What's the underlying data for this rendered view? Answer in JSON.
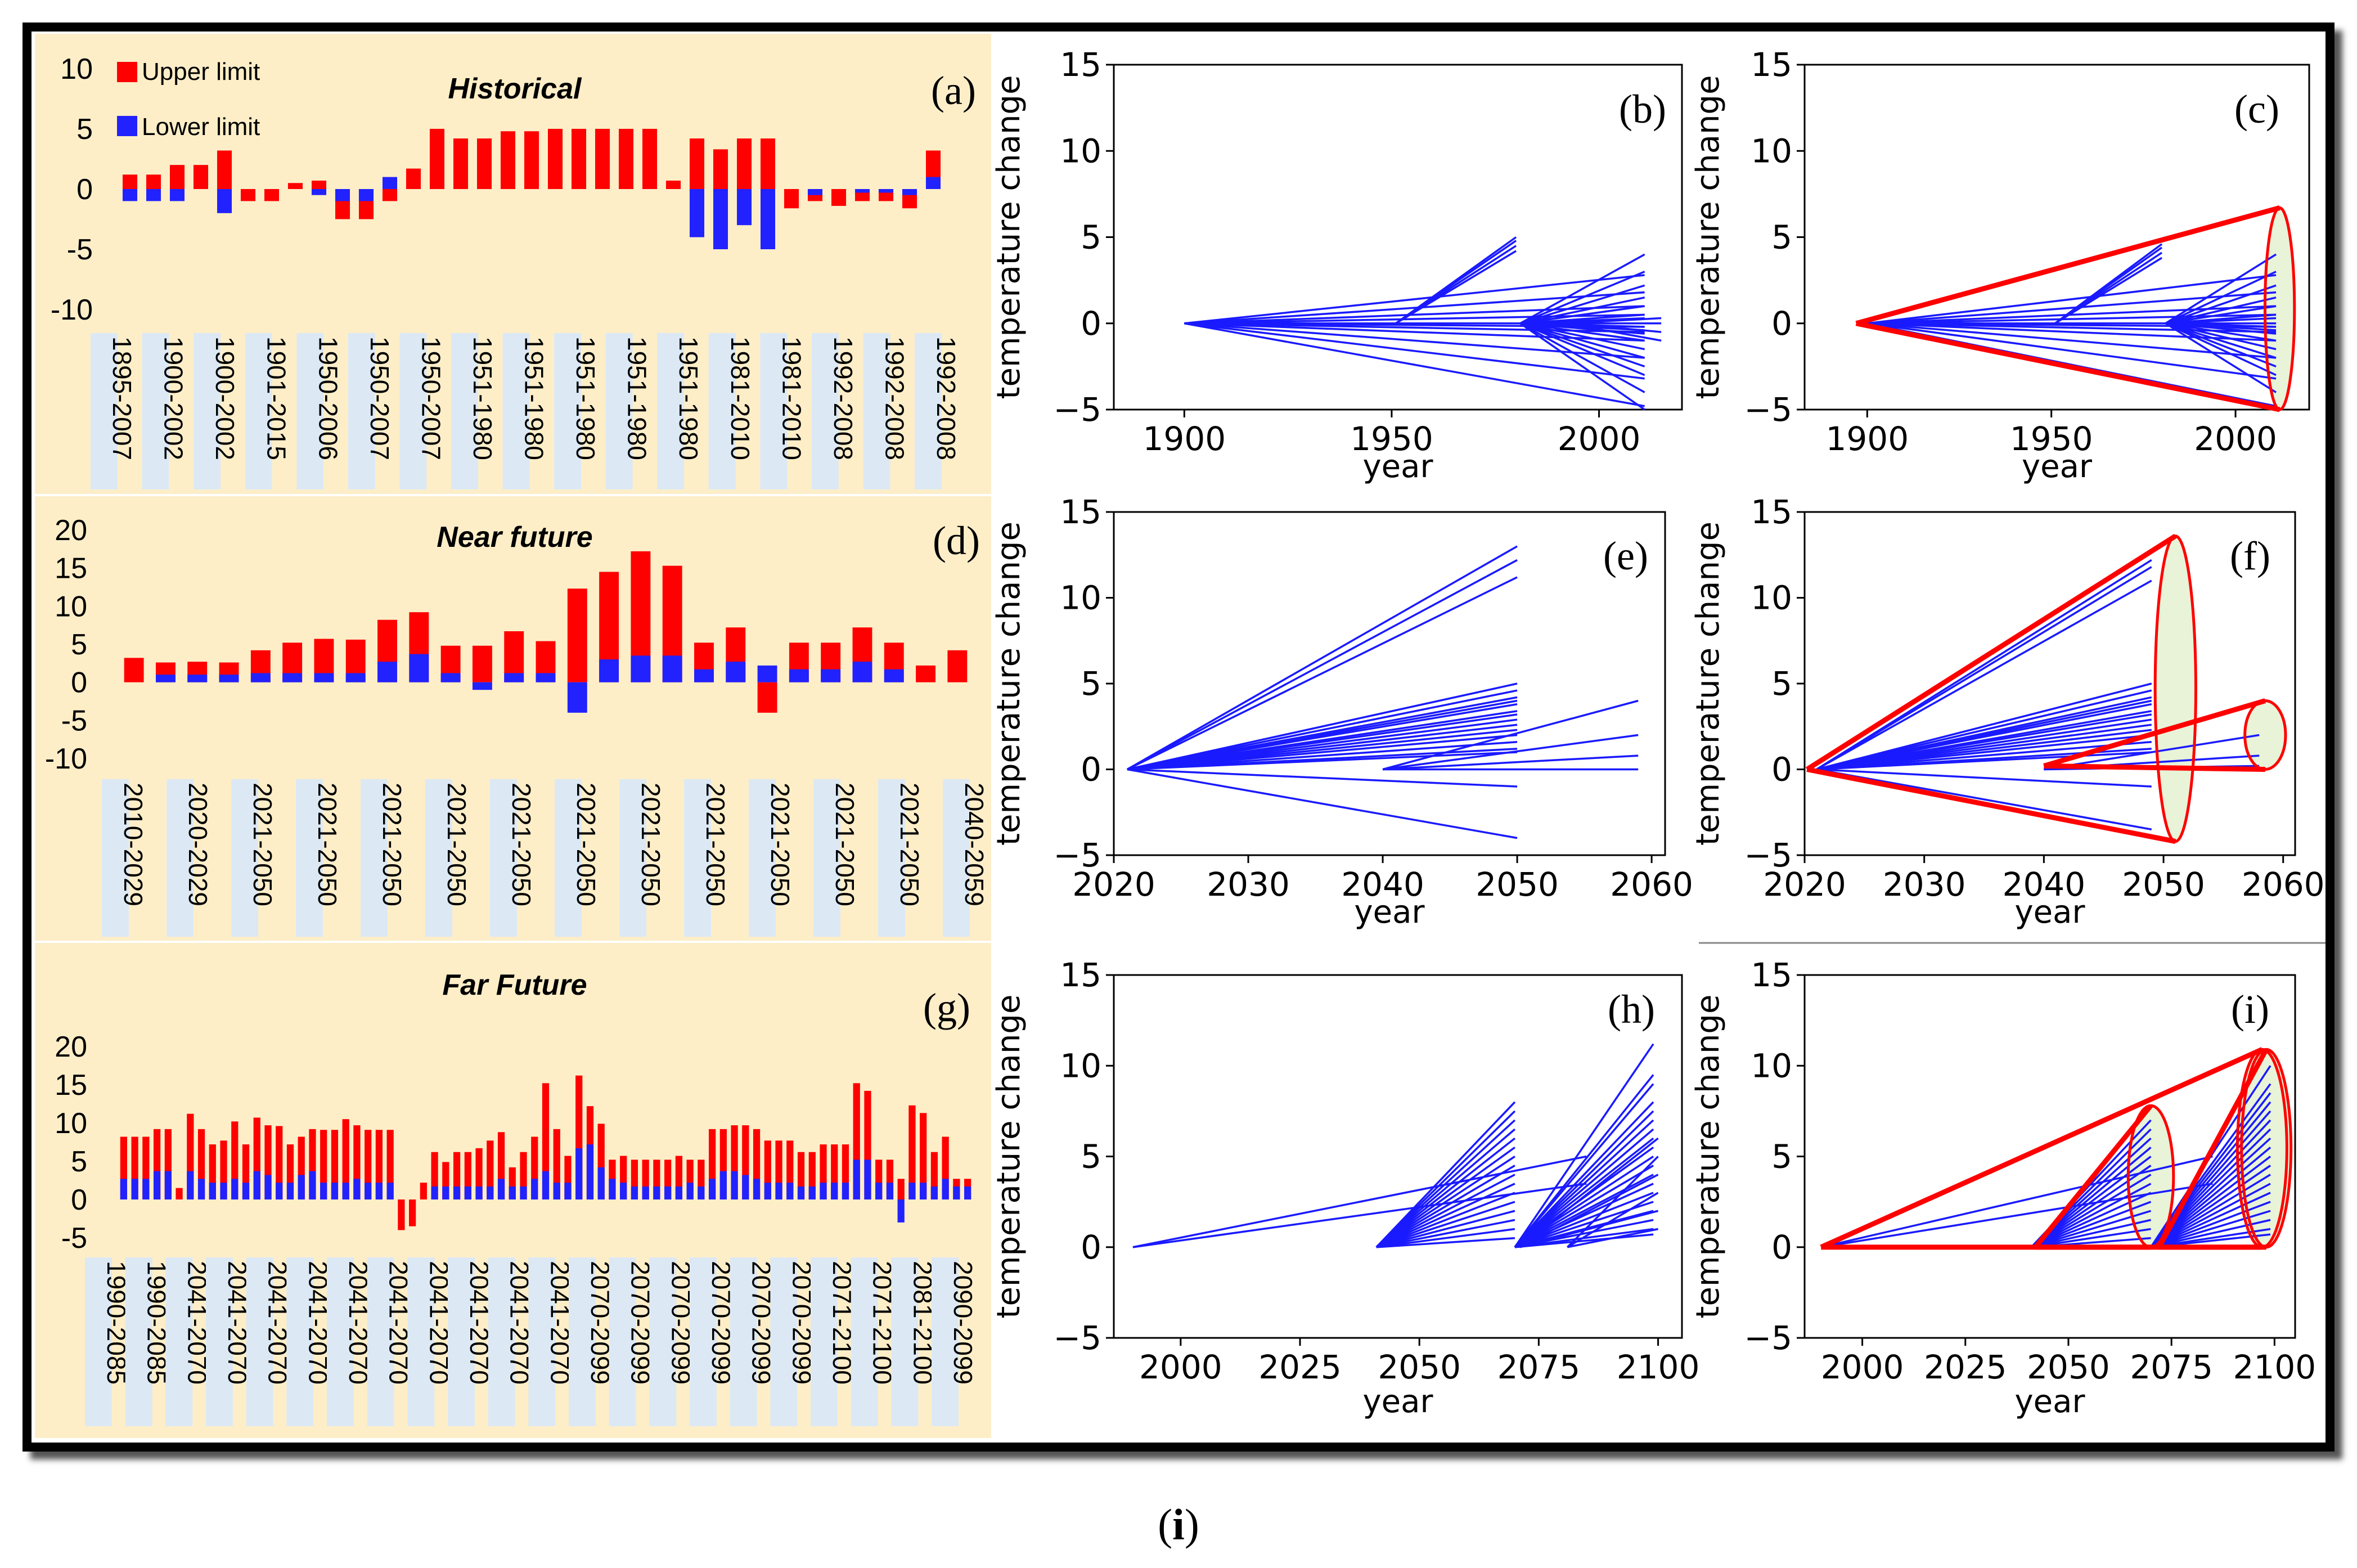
{
  "caption": {
    "open": "(",
    "label": "i",
    "close": ")"
  },
  "legend": {
    "upper": "Upper limit",
    "lower": "Lower limit"
  },
  "colors": {
    "upper": "#ff0000",
    "lower": "#2222ff",
    "bg": "#fdeec8",
    "label_bg": "#dce9f5",
    "line": "#1a1aff",
    "cone": "#e8f3d8",
    "cone_edge": "#ff0000"
  },
  "chart_data": [
    {
      "type": "bar",
      "panel": "(a)",
      "title": "Historical",
      "yticks": [
        "10",
        "5",
        "0",
        "-5",
        "-10"
      ],
      "ylim": [
        -10,
        10
      ],
      "categories": [
        "1895-2007",
        "1895-2007",
        "1900-2002",
        "1900-2002",
        "1900-2002",
        "1901-2015",
        "1901-2015",
        "1950-2006",
        "1950-2006",
        "1950-2007",
        "1950-2007",
        "1950-2007",
        "1950-2007",
        "1951-1980",
        "1951-1980",
        "1951-1980",
        "1951-1980",
        "1951-1980",
        "1951-1980",
        "1951-1980",
        "1951-1980",
        "1951-1980",
        "1951-1980",
        "1981-2010",
        "1981-2010",
        "1981-2010",
        "1981-2010",
        "1981-2010",
        "1992-2008",
        "1992-2008",
        "1992-2008",
        "1992-2008",
        "1992-2008",
        "1992-2008",
        "1992-2008"
      ],
      "tick_labels": [
        "1895-2007",
        "1900-2002",
        "1900-2002",
        "1901-2015",
        "1950-2006",
        "1950-2007",
        "1950-2007",
        "1951-1980",
        "1951-1980",
        "1951-1980",
        "1951-1980",
        "1951-1980",
        "1981-2010",
        "1981-2010",
        "1992-2008",
        "1992-2008",
        "1992-2008"
      ],
      "series": [
        {
          "name": "Upper limit",
          "values": [
            1.2,
            1.2,
            2,
            2,
            3.2,
            -1,
            -1,
            0.5,
            0.7,
            -2.5,
            -2.5,
            -1,
            1.7,
            5,
            4.2,
            4.2,
            4.8,
            4.8,
            5,
            5,
            5,
            5,
            5,
            0.7,
            4.2,
            3.3,
            4.2,
            4.2,
            -1.6,
            -1,
            -1.4,
            -1,
            -1,
            -1.6,
            3.2
          ]
        },
        {
          "name": "Lower limit",
          "values": [
            -1,
            -1,
            -1,
            0,
            -2,
            0,
            0,
            0,
            -0.5,
            -1,
            -1,
            1,
            0,
            0,
            0,
            0,
            0,
            0,
            0,
            0,
            0,
            0,
            0,
            0,
            -4,
            -5,
            -3,
            -5,
            0,
            -0.5,
            0,
            -0.3,
            -0.3,
            -0.5,
            1
          ]
        }
      ]
    },
    {
      "type": "bar",
      "panel": "(d)",
      "title": "Near future",
      "yticks": [
        "20",
        "15",
        "10",
        "5",
        "0",
        "-5",
        "-10"
      ],
      "ylim": [
        -10,
        20
      ],
      "tick_labels": [
        "2010-2029",
        "2020-2029",
        "2021-2050",
        "2021-2050",
        "2021-2050",
        "2021-2050",
        "2021-2050",
        "2021-2050",
        "2021-2050",
        "2021-2050",
        "2021-2050",
        "2021-2050",
        "2021-2050",
        "2040-2059"
      ],
      "series": [
        {
          "name": "Upper limit",
          "values": [
            3.2,
            2.6,
            2.7,
            2.6,
            4.2,
            5.2,
            5.7,
            5.6,
            8.2,
            9.2,
            4.8,
            4.8,
            6.7,
            5.4,
            12.3,
            14.5,
            17.2,
            15.3,
            5.2,
            7.2,
            -4,
            5.2,
            5.2,
            7.2,
            5.2,
            2.2,
            4.2
          ]
        },
        {
          "name": "Lower limit",
          "values": [
            0,
            1,
            1,
            1,
            1.2,
            1.2,
            1.2,
            1.2,
            2.7,
            3.7,
            1.2,
            -1,
            1.2,
            1.2,
            -4,
            3,
            3.5,
            3.5,
            1.7,
            2.7,
            2.2,
            1.7,
            1.7,
            2.7,
            1.7,
            0,
            0
          ]
        }
      ]
    },
    {
      "type": "bar",
      "panel": "(g)",
      "title": "Far Future",
      "yticks": [
        "20",
        "15",
        "10",
        "5",
        "0",
        "-5"
      ],
      "ylim": [
        -5,
        20
      ],
      "tick_labels": [
        "1990-2085",
        "1990-2085",
        "2041-2070",
        "2041-2070",
        "2041-2070",
        "2041-2070",
        "2041-2070",
        "2041-2070",
        "2041-2070",
        "2041-2070",
        "2041-2070",
        "2041-2070",
        "2070-2099",
        "2070-2099",
        "2070-2099",
        "2070-2099",
        "2070-2099",
        "2070-2099",
        "2071-2100",
        "2071-2100",
        "2081-2100",
        "2090-2099"
      ],
      "series": [
        {
          "name": "Upper limit",
          "values": [
            8.2,
            8.2,
            8.2,
            9.2,
            9.2,
            1.5,
            11.2,
            9.2,
            7.2,
            7.7,
            10.2,
            7.2,
            10.7,
            9.7,
            9.6,
            7.2,
            8.2,
            9.2,
            9.1,
            9.1,
            10.5,
            9.7,
            9.1,
            9.1,
            9.1,
            -4,
            -3.5,
            2.2,
            6.2,
            4.9,
            6.2,
            6.2,
            6.7,
            7.7,
            8.8,
            4.2,
            6.2,
            8.2,
            15.2,
            9.2,
            5.7,
            16.2,
            12.2,
            9.9,
            5.2,
            5.7,
            5.2,
            5.2,
            5.2,
            5.2,
            5.7,
            5.2,
            5.2,
            9.2,
            9.2,
            9.7,
            9.7,
            9.2,
            7.7,
            7.7,
            7.7,
            6.2,
            6.2,
            7.2,
            7.2,
            7.2,
            15.2,
            14.2,
            5.2,
            5.2,
            2.7,
            12.3,
            11.3,
            6.2,
            8.2,
            2.7,
            2.7
          ]
        },
        {
          "name": "Lower limit",
          "values": [
            2.7,
            2.7,
            2.7,
            3.7,
            3.7,
            0,
            3.7,
            2.7,
            2.2,
            2.2,
            2.7,
            2.2,
            3.7,
            3.2,
            2.2,
            2.2,
            3.2,
            3.7,
            2.2,
            2.2,
            2.2,
            2.7,
            2.2,
            2.2,
            2.2,
            0,
            0,
            0,
            1.7,
            1.7,
            1.7,
            1.7,
            1.7,
            1.7,
            2.7,
            1.7,
            1.7,
            2.7,
            3.7,
            2.2,
            2.2,
            6.7,
            7.2,
            4.2,
            2.7,
            2.2,
            1.7,
            1.7,
            1.7,
            1.7,
            1.7,
            2.2,
            1.7,
            2.7,
            3.7,
            3.7,
            3.2,
            2.7,
            2.2,
            2.2,
            2.2,
            1.7,
            1.7,
            2.2,
            2.2,
            2.2,
            5.2,
            5.2,
            2.2,
            2.2,
            -3,
            2.2,
            2.2,
            1.7,
            2.7,
            1.7,
            1.7
          ]
        }
      ]
    },
    {
      "type": "line",
      "panel": "(b)",
      "xlabel": "year",
      "ylabel": "temperature change",
      "xlim": [
        1883,
        2020
      ],
      "ylim": [
        -5,
        15
      ],
      "xticks": [
        1900,
        1950,
        2000
      ],
      "yticks": [
        -5,
        0,
        5,
        10,
        15
      ],
      "cone": false,
      "bundles": [
        {
          "x0": 1900,
          "x1": 2011,
          "ys": [
            2.8,
            1.8,
            1,
            0.5,
            0,
            0,
            -0.2,
            -0.5,
            -1,
            -2,
            -3.2,
            -4.8
          ],
          "n": 12
        },
        {
          "x0": 1951,
          "x1": 1980,
          "ys": [
            5,
            4.8,
            4.5,
            4.2
          ],
          "n": 4
        },
        {
          "x0": 1981,
          "x1": 2011,
          "ys": [
            4,
            3,
            2.2,
            1.5,
            1,
            0.5,
            0.3,
            0,
            -0.2,
            -0.4,
            -0.6,
            -1,
            -1.5,
            -2,
            -2.5,
            -3,
            -4,
            -5
          ],
          "n": 18
        },
        {
          "x0": 1992,
          "x1": 2015,
          "ys": [
            0.3,
            0,
            -0.5,
            -1
          ],
          "n": 4
        }
      ]
    },
    {
      "type": "line",
      "panel": "(c)",
      "xlabel": "year",
      "ylabel": "temperature change",
      "xlim": [
        1883,
        2020
      ],
      "ylim": [
        -5,
        15
      ],
      "xticks": [
        1900,
        1950,
        2000
      ],
      "yticks": [
        -5,
        0,
        5,
        10,
        15
      ],
      "cone": true,
      "bundles": [
        {
          "x0": 1900,
          "x1": 2011,
          "ys": [
            2.8,
            1.8,
            1,
            0.5,
            0,
            0,
            -0.2,
            -0.5,
            -1,
            -2,
            -3.2,
            -4.8
          ],
          "n": 12
        },
        {
          "x0": 1951,
          "x1": 1980,
          "ys": [
            4.6,
            4.4,
            4.1,
            3.8
          ],
          "n": 4
        },
        {
          "x0": 1981,
          "x1": 2011,
          "ys": [
            4,
            3,
            2.2,
            1.5,
            1,
            0.5,
            0.3,
            0,
            -0.2,
            -0.4,
            -0.6,
            -1,
            -1.5,
            -2,
            -2.5,
            -3,
            -4
          ],
          "n": 17
        }
      ],
      "cones": [
        {
          "apex": [
            1897,
            0
          ],
          "x": 2012,
          "ytop": 6.7,
          "ybot": -5,
          "rx": 4
        }
      ]
    },
    {
      "type": "line",
      "panel": "(e)",
      "xlabel": "year",
      "ylabel": "temperature change",
      "xlim": [
        2020,
        2061
      ],
      "ylim": [
        -5,
        15
      ],
      "xticks": [
        2020,
        2030,
        2040,
        2050,
        2060
      ],
      "yticks": [
        -5,
        0,
        5,
        10,
        15
      ],
      "cone": false,
      "bundles": [
        {
          "x0": 2021,
          "x1": 2050,
          "ys": [
            13,
            12.2,
            11.2,
            5,
            4.6,
            4.2,
            4,
            3.8,
            3.4,
            3.2,
            2.9,
            2.6,
            2.3,
            2,
            1.6,
            1.2,
            1,
            -1,
            -4
          ],
          "n": 19
        },
        {
          "x0": 2040,
          "x1": 2059,
          "ys": [
            4,
            2,
            0.8,
            0
          ],
          "n": 4
        }
      ]
    },
    {
      "type": "line",
      "panel": "(f)",
      "xlabel": "year",
      "ylabel": "temperature change",
      "xlim": [
        2020,
        2061
      ],
      "ylim": [
        -5,
        15
      ],
      "xticks": [
        2020,
        2030,
        2040,
        2050,
        2060
      ],
      "yticks": [
        -5,
        0,
        5,
        10,
        15
      ],
      "cone": true,
      "bundles": [
        {
          "x0": 2021,
          "x1": 2049,
          "ys": [
            12.2,
            11.8,
            11,
            5,
            4.6,
            4.2,
            4,
            3.8,
            3.4,
            3.2,
            2.9,
            2.6,
            2.3,
            2,
            1.6,
            1.2,
            1,
            -1,
            -3.5
          ],
          "n": 19
        },
        {
          "x0": 2040,
          "x1": 2058,
          "ys": [
            2,
            0.8,
            0.2
          ],
          "n": 3
        }
      ],
      "cones": [
        {
          "apex": [
            2020.2,
            0
          ],
          "x": 2051,
          "ytop": 13.6,
          "ybot": -4.2,
          "rx": 1.7
        },
        {
          "apex": [
            2040,
            0.2
          ],
          "x": 2058.5,
          "ytop": 4,
          "ybot": 0,
          "rx": 1.7
        }
      ]
    },
    {
      "type": "line",
      "panel": "(h)",
      "xlabel": "year",
      "ylabel": "temperature change",
      "xlim": [
        1986,
        2105
      ],
      "ylim": [
        -5,
        15
      ],
      "xticks": [
        2000,
        2025,
        2050,
        2075,
        2100
      ],
      "yticks": [
        -5,
        0,
        5,
        10,
        15
      ],
      "cone": false,
      "bundles": [
        {
          "x0": 1990,
          "x1": 2085,
          "ys": [
            5,
            3.5
          ],
          "n": 2
        },
        {
          "x0": 2041,
          "x1": 2070,
          "ys": [
            8,
            7.5,
            7,
            6.5,
            6,
            5.5,
            5,
            4.5,
            4,
            3.5,
            3,
            2.5,
            2,
            1.5,
            1,
            0.5
          ],
          "n": 16
        },
        {
          "x0": 2070,
          "x1": 2099,
          "ys": [
            11.2,
            9.5,
            9,
            8,
            7.5,
            7,
            6.5,
            6,
            5.5,
            5,
            4.5,
            4,
            3.5,
            3,
            2.5,
            2,
            1.5,
            1,
            0.7
          ],
          "n": 19
        },
        {
          "x0": 2071,
          "x1": 2100,
          "ys": [
            6,
            4,
            2
          ],
          "n": 3
        },
        {
          "x0": 2081,
          "x1": 2100,
          "ys": [
            5,
            3,
            1
          ],
          "n": 3
        }
      ]
    },
    {
      "type": "line",
      "panel": "(i)",
      "xlabel": "year",
      "ylabel": "temperature change",
      "xlim": [
        1986,
        2105
      ],
      "ylim": [
        -5,
        15
      ],
      "xticks": [
        2000,
        2025,
        2050,
        2075,
        2100
      ],
      "yticks": [
        -5,
        0,
        5,
        10,
        15
      ],
      "cone": true,
      "bundles": [
        {
          "x0": 1990,
          "x1": 2085,
          "ys": [
            5,
            3.5
          ],
          "n": 2
        },
        {
          "x0": 2041,
          "x1": 2070,
          "ys": [
            7,
            6.5,
            6,
            5.5,
            5,
            4.5,
            4,
            3.5,
            3,
            2.5,
            2,
            1.5,
            1,
            0.5
          ],
          "n": 14
        },
        {
          "x0": 2070,
          "x1": 2099,
          "ys": [
            10,
            9,
            8.5,
            8,
            7.5,
            7,
            6.5,
            6,
            5.5,
            5,
            4.5,
            4,
            3.5,
            3,
            2.5,
            2,
            1.5,
            1,
            0.7
          ],
          "n": 19
        }
      ],
      "cones": [
        {
          "apex": [
            1990,
            0
          ],
          "x": 2097,
          "ytop": 10.9,
          "ybot": 0,
          "rx": 6
        },
        {
          "apex": [
            2042,
            0
          ],
          "x": 2070,
          "ytop": 7.8,
          "ybot": 0,
          "rx": 5.5
        },
        {
          "apex": [
            2072,
            0
          ],
          "x": 2098,
          "ytop": 10.9,
          "ybot": 0,
          "rx": 6
        }
      ]
    }
  ]
}
